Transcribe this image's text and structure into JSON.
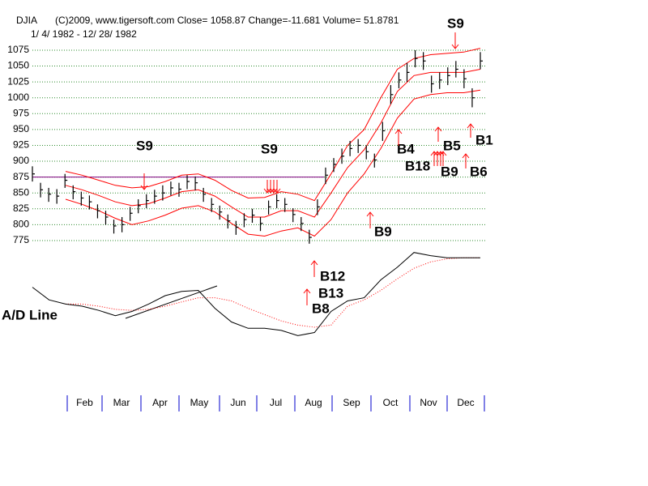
{
  "chart_data": {
    "type": "hlc",
    "title": "DJIA",
    "header": "(C)2009, www.tigersoft.com     Close=  1058.87  Change=-11.681 Volume= 51.8781",
    "subtitle": "1/ 4/ 1982 - 12/ 28/ 1982",
    "x_labels": [
      "Feb",
      "Mar",
      "Apr",
      "May",
      "Jun",
      "Jul",
      "Aug",
      "Sep",
      "Oct",
      "Nov",
      "Dec"
    ],
    "ylim": [
      760,
      1100
    ],
    "yticks": [
      775,
      800,
      825,
      850,
      875,
      900,
      925,
      950,
      975,
      1000,
      1025,
      1050,
      1075
    ],
    "grid": true,
    "grid_color": "#2e8b2e",
    "reference_line": 875,
    "reference_color": "#800080",
    "bar_color": "#000000",
    "high": [
      892,
      866,
      858,
      856,
      880,
      862,
      852,
      846,
      832,
      822,
      808,
      812,
      828,
      840,
      848,
      855,
      862,
      868,
      866,
      878,
      876,
      858,
      842,
      830,
      816,
      806,
      818,
      825,
      812,
      838,
      848,
      842,
      826,
      812,
      792,
      840,
      890,
      905,
      920,
      932,
      935,
      925,
      912,
      962,
      1020,
      1040,
      1055,
      1075,
      1072,
      1035,
      1040,
      1048,
      1058,
      1045,
      1015,
      1072
    ],
    "low": [
      868,
      843,
      836,
      833,
      858,
      840,
      830,
      824,
      810,
      800,
      786,
      788,
      806,
      818,
      826,
      833,
      838,
      846,
      844,
      856,
      854,
      836,
      820,
      808,
      794,
      784,
      796,
      803,
      790,
      816,
      826,
      820,
      804,
      790,
      770,
      815,
      864,
      883,
      896,
      908,
      913,
      903,
      890,
      932,
      990,
      1015,
      1025,
      1048,
      1044,
      1008,
      1014,
      1020,
      1032,
      1015,
      985,
      1045
    ],
    "close": [
      880,
      855,
      848,
      845,
      870,
      852,
      842,
      836,
      822,
      812,
      798,
      800,
      818,
      830,
      838,
      845,
      850,
      858,
      856,
      868,
      866,
      848,
      832,
      820,
      806,
      796,
      808,
      815,
      802,
      828,
      838,
      832,
      816,
      802,
      780,
      828,
      878,
      895,
      908,
      920,
      925,
      915,
      902,
      948,
      1005,
      1028,
      1040,
      1062,
      1058,
      1022,
      1028,
      1035,
      1045,
      1030,
      1000,
      1058
    ],
    "bands": {
      "color": "#ff0000",
      "upper": [
        null,
        null,
        884,
        878,
        870,
        862,
        858,
        860,
        868,
        878,
        880,
        870,
        854,
        842,
        843,
        852,
        848,
        838,
        880,
        925,
        950,
        1000,
        1045,
        1062,
        1068,
        1070,
        1072,
        1078
      ],
      "middle": [
        null,
        null,
        862,
        855,
        846,
        836,
        830,
        833,
        842,
        852,
        855,
        845,
        828,
        812,
        812,
        822,
        822,
        812,
        850,
        890,
        918,
        960,
        1010,
        1035,
        1040,
        1040,
        1040,
        1045
      ],
      "lower": [
        null,
        null,
        840,
        832,
        822,
        810,
        800,
        806,
        815,
        826,
        830,
        820,
        802,
        785,
        782,
        790,
        795,
        782,
        808,
        850,
        880,
        920,
        968,
        998,
        1005,
        1008,
        1008,
        1012
      ]
    },
    "ad_label": "A/D Line",
    "ad_ylim": [
      0,
      100
    ],
    "ad_line": [
      58,
      46,
      42,
      40,
      36,
      31,
      35,
      42,
      50,
      54,
      55,
      38,
      25,
      19,
      19,
      17,
      12,
      15,
      35,
      45,
      48,
      65,
      77,
      91,
      88,
      86,
      86,
      86
    ],
    "ad_average": [
      null,
      null,
      42,
      42,
      40,
      37,
      36,
      37,
      40,
      44,
      48,
      48,
      45,
      38,
      32,
      26,
      22,
      20,
      22,
      40,
      46,
      55,
      66,
      76,
      82,
      85,
      86,
      86
    ],
    "ad_average_color": "#ff0000",
    "annotations": [
      "S9",
      "S9",
      "S9",
      "B9",
      "B4",
      "B18",
      "B5",
      "B9",
      "B1",
      "B6",
      "B12",
      "B13",
      "B8"
    ]
  }
}
